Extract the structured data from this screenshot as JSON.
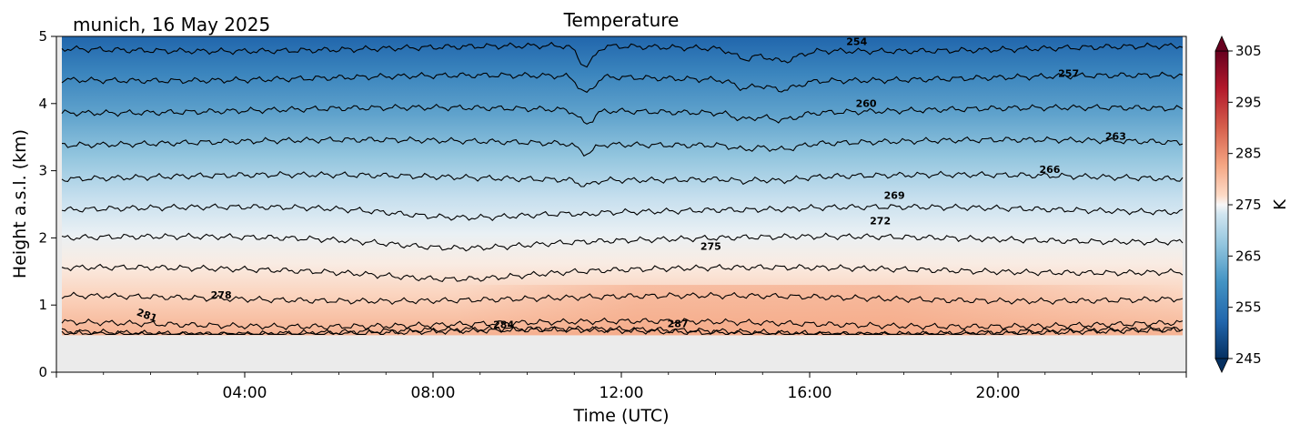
{
  "chart_data": {
    "type": "heatmap",
    "subtype": "filled-contour",
    "title": "Temperature",
    "subtitle": "munich, 16 May 2025",
    "xlabel": "Time (UTC)",
    "ylabel": "Height a.s.l. (km)",
    "xlim": [
      "00:00",
      "24:00"
    ],
    "x_ticks": [
      "04:00",
      "08:00",
      "12:00",
      "16:00",
      "20:00"
    ],
    "ylim": [
      0,
      5
    ],
    "y_ticks": [
      "0",
      "1",
      "2",
      "3",
      "4",
      "5"
    ],
    "data_bottom_km": 0.55,
    "colormap": "RdBu_r",
    "colorbar": {
      "label": "K",
      "range": [
        245,
        305
      ],
      "ticks": [
        "245",
        "255",
        "265",
        "275",
        "285",
        "295",
        "305"
      ],
      "extend": "both"
    },
    "contour_levels": [
      {
        "value": 254,
        "label": "254",
        "height_km": 4.82
      },
      {
        "value": 257,
        "label": "257",
        "height_km": 4.38
      },
      {
        "value": 260,
        "label": "260",
        "height_km": 3.9
      },
      {
        "value": 263,
        "label": "263",
        "height_km": 3.42
      },
      {
        "value": 266,
        "label": "266",
        "height_km": 2.9
      },
      {
        "value": 269,
        "label": "269",
        "height_km": 2.42
      },
      {
        "value": 272,
        "label": "272",
        "height_km": 1.98
      },
      {
        "value": 275,
        "label": "275",
        "height_km": 1.52
      },
      {
        "value": 278,
        "label": "278",
        "height_km": 1.1
      },
      {
        "value": 281,
        "label": "281",
        "height_km": 0.72
      },
      {
        "value": 284,
        "label": "284",
        "height_km": 0.6
      },
      {
        "value": 287,
        "label": "287",
        "height_km": 0.6
      }
    ],
    "contour_labels": [
      {
        "text": "254",
        "time_h": 17.0,
        "height_km": 4.87
      },
      {
        "text": "257",
        "time_h": 21.5,
        "height_km": 4.4
      },
      {
        "text": "260",
        "time_h": 17.2,
        "height_km": 3.95
      },
      {
        "text": "263",
        "time_h": 22.5,
        "height_km": 3.46
      },
      {
        "text": "266",
        "time_h": 21.1,
        "height_km": 2.97
      },
      {
        "text": "269",
        "time_h": 17.8,
        "height_km": 2.58
      },
      {
        "text": "272",
        "time_h": 17.5,
        "height_km": 2.2
      },
      {
        "text": "275",
        "time_h": 13.9,
        "height_km": 1.82
      },
      {
        "text": "278",
        "time_h": 3.5,
        "height_km": 1.1
      },
      {
        "text": "281",
        "time_h": 1.9,
        "height_km": 0.8
      },
      {
        "text": "284",
        "time_h": 9.5,
        "height_km": 0.66
      },
      {
        "text": "287",
        "time_h": 13.2,
        "height_km": 0.67
      }
    ],
    "grid": false,
    "no_data_color": "#ebebeb"
  }
}
